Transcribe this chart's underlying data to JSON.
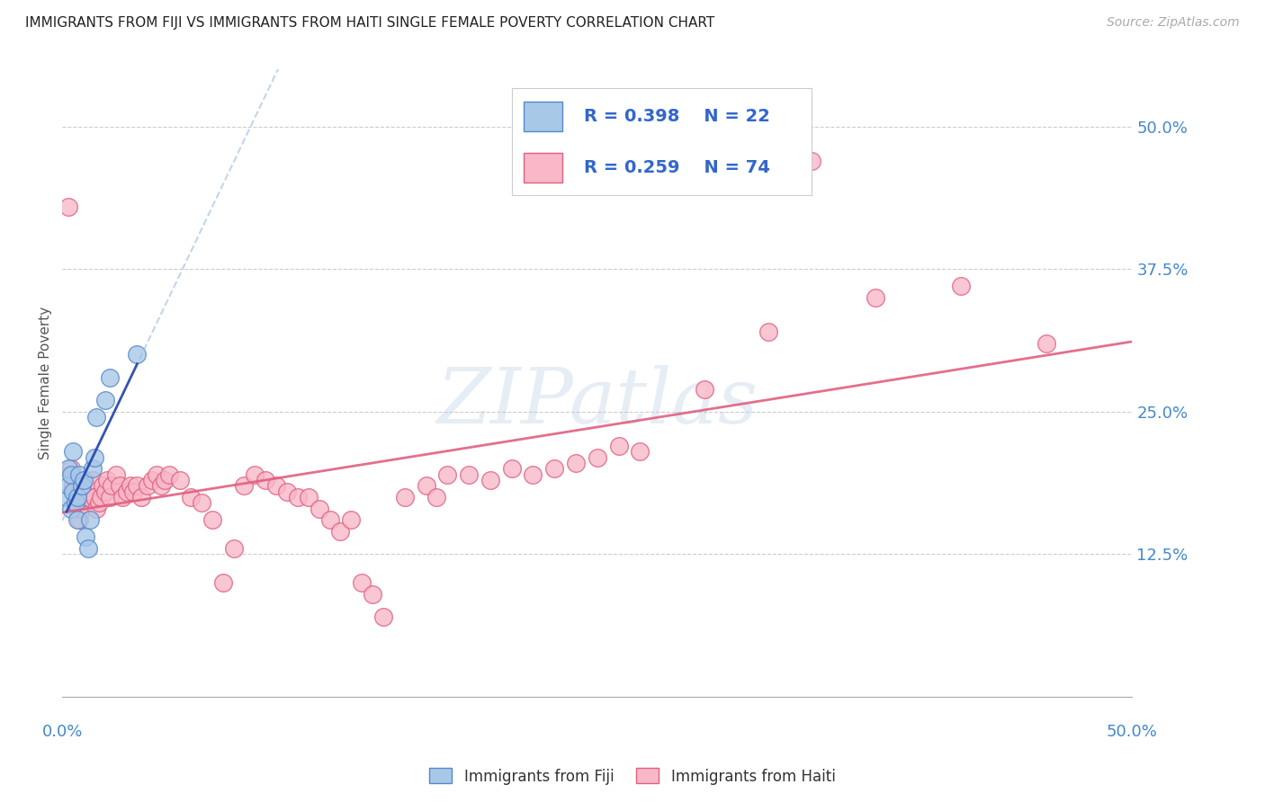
{
  "title": "IMMIGRANTS FROM FIJI VS IMMIGRANTS FROM HAITI SINGLE FEMALE POVERTY CORRELATION CHART",
  "source": "Source: ZipAtlas.com",
  "ylabel": "Single Female Poverty",
  "y_tick_labels": [
    "50.0%",
    "37.5%",
    "25.0%",
    "12.5%"
  ],
  "y_tick_values": [
    0.5,
    0.375,
    0.25,
    0.125
  ],
  "xlim": [
    0.0,
    0.5
  ],
  "ylim": [
    0.0,
    0.55
  ],
  "fiji_color": "#a8c8e8",
  "haiti_color": "#f8b8c8",
  "fiji_edge_color": "#5588cc",
  "haiti_edge_color": "#e06080",
  "fiji_line_color": "#2244aa",
  "haiti_line_color": "#e06080",
  "fiji_dash_color": "#99bbdd",
  "watermark": "ZIPatlas",
  "legend_fiji_R": "R = 0.398",
  "legend_fiji_N": "N = 22",
  "legend_haiti_R": "R = 0.259",
  "legend_haiti_N": "N = 74",
  "legend_label_fiji": "Immigrants from Fiji",
  "legend_label_haiti": "Immigrants from Haiti",
  "fiji_x": [
    0.002,
    0.003,
    0.003,
    0.004,
    0.004,
    0.005,
    0.005,
    0.006,
    0.007,
    0.007,
    0.008,
    0.009,
    0.01,
    0.011,
    0.012,
    0.013,
    0.014,
    0.015,
    0.016,
    0.02,
    0.022,
    0.035
  ],
  "fiji_y": [
    0.175,
    0.185,
    0.2,
    0.165,
    0.195,
    0.18,
    0.215,
    0.17,
    0.155,
    0.175,
    0.195,
    0.185,
    0.19,
    0.14,
    0.13,
    0.155,
    0.2,
    0.21,
    0.245,
    0.26,
    0.28,
    0.3
  ],
  "haiti_x": [
    0.003,
    0.004,
    0.005,
    0.006,
    0.007,
    0.008,
    0.009,
    0.01,
    0.011,
    0.012,
    0.013,
    0.014,
    0.015,
    0.016,
    0.017,
    0.018,
    0.019,
    0.02,
    0.021,
    0.022,
    0.023,
    0.025,
    0.027,
    0.028,
    0.03,
    0.032,
    0.033,
    0.035,
    0.037,
    0.04,
    0.042,
    0.044,
    0.046,
    0.048,
    0.05,
    0.055,
    0.06,
    0.065,
    0.07,
    0.075,
    0.08,
    0.085,
    0.09,
    0.095,
    0.1,
    0.105,
    0.11,
    0.115,
    0.12,
    0.125,
    0.13,
    0.135,
    0.14,
    0.145,
    0.15,
    0.16,
    0.17,
    0.175,
    0.18,
    0.19,
    0.2,
    0.21,
    0.22,
    0.23,
    0.24,
    0.25,
    0.26,
    0.27,
    0.3,
    0.33,
    0.35,
    0.38,
    0.42,
    0.46
  ],
  "haiti_y": [
    0.43,
    0.2,
    0.185,
    0.175,
    0.165,
    0.155,
    0.165,
    0.175,
    0.185,
    0.175,
    0.18,
    0.19,
    0.175,
    0.165,
    0.17,
    0.175,
    0.185,
    0.18,
    0.19,
    0.175,
    0.185,
    0.195,
    0.185,
    0.175,
    0.18,
    0.185,
    0.18,
    0.185,
    0.175,
    0.185,
    0.19,
    0.195,
    0.185,
    0.19,
    0.195,
    0.19,
    0.175,
    0.17,
    0.155,
    0.1,
    0.13,
    0.185,
    0.195,
    0.19,
    0.185,
    0.18,
    0.175,
    0.175,
    0.165,
    0.155,
    0.145,
    0.155,
    0.1,
    0.09,
    0.07,
    0.175,
    0.185,
    0.175,
    0.195,
    0.195,
    0.19,
    0.2,
    0.195,
    0.2,
    0.205,
    0.21,
    0.22,
    0.215,
    0.27,
    0.32,
    0.47,
    0.35,
    0.36,
    0.31
  ]
}
